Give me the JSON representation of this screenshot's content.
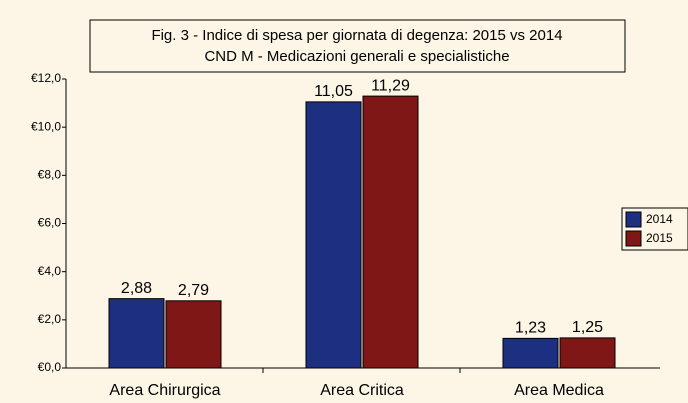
{
  "chart_data": {
    "type": "bar",
    "title": "Fig. 3 - Indice di spesa per giornata di degenza: 2015 vs 2014",
    "subtitle": "CND M - Medicazioni generali e specialistiche",
    "categories": [
      "Area Chirurgica",
      "Area Critica",
      "Area Medica"
    ],
    "series": [
      {
        "name": "2014",
        "color": "#1c2f80",
        "values": [
          2.88,
          11.05,
          1.23
        ],
        "value_labels": [
          "2,88",
          "11,05",
          "1,23"
        ]
      },
      {
        "name": "2015",
        "color": "#7e1716",
        "values": [
          2.79,
          11.29,
          1.25
        ],
        "value_labels": [
          "2,79",
          "11,29",
          "1,25"
        ]
      }
    ],
    "ylim": [
      0,
      12
    ],
    "yticks": [
      {
        "value": 0,
        "label": "€0,0"
      },
      {
        "value": 2,
        "label": "€2,0"
      },
      {
        "value": 4,
        "label": "€4,0"
      },
      {
        "value": 6,
        "label": "€6,0"
      },
      {
        "value": 8,
        "label": "€8,0"
      },
      {
        "value": 10,
        "label": "€10,0"
      },
      {
        "value": 12,
        "label": "€12,0"
      }
    ],
    "legend": "right"
  }
}
